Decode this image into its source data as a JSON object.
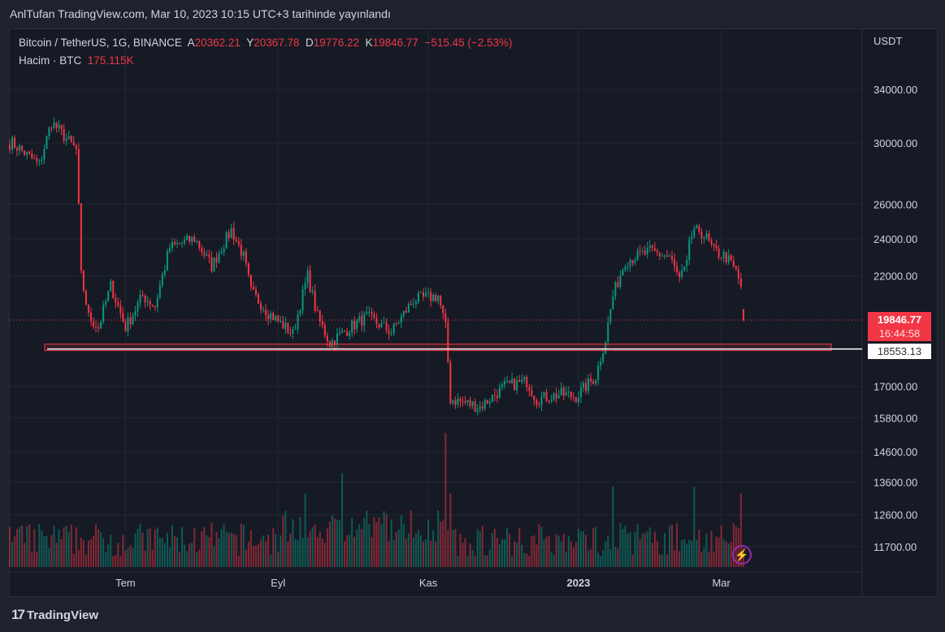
{
  "header": "AnlTufan TradingView.com, Mar 10, 2023 10:15 UTC+3 tarihinde yayınlandı",
  "legend": {
    "symbol": "Bitcoin / TetherUS, 1G, BINANCE",
    "open_label": "A",
    "open": "20362.21",
    "high_label": "Y",
    "high": "20367.78",
    "low_label": "D",
    "low": "19776.22",
    "close_label": "K",
    "close": "19846.77",
    "change": "−515.45 (−2.53%)",
    "volume_label": "Hacim · BTC",
    "volume": "175.115K"
  },
  "price_tags": {
    "last_price": "19846.77",
    "countdown": "16:44:58",
    "line_price": "18553.13"
  },
  "footer": {
    "brand": "TradingView"
  },
  "colors": {
    "up": "#089981",
    "down": "#f23645",
    "bg": "#161a25"
  },
  "chart_data": {
    "type": "candlestick",
    "scale": "log",
    "currency": "USDT",
    "y_ticks": [
      "34000.00",
      "30000.00",
      "26000.00",
      "24000.00",
      "22000.00",
      "17000.00",
      "15800.00",
      "14600.00",
      "13600.00",
      "12600.00",
      "11700.00"
    ],
    "y_tick_values": [
      34000,
      30000,
      26000,
      24000,
      22000,
      17000,
      15800,
      14600,
      13600,
      12600,
      11700
    ],
    "x_ticks": [
      {
        "label": "Tem",
        "day": 47
      },
      {
        "label": "Eyl",
        "day": 109
      },
      {
        "label": "Kas",
        "day": 170
      },
      {
        "label": "2023",
        "day": 231
      },
      {
        "label": "Mar",
        "day": 289
      }
    ],
    "horizontal_line": 18553.13,
    "close_path_day_price": [
      [
        1,
        30000
      ],
      [
        12,
        28500
      ],
      [
        17,
        31500
      ],
      [
        22,
        30500
      ],
      [
        27,
        29500
      ],
      [
        29,
        22000
      ],
      [
        32,
        20000
      ],
      [
        36,
        19500
      ],
      [
        41,
        21500
      ],
      [
        47,
        19500
      ],
      [
        54,
        21000
      ],
      [
        59,
        20500
      ],
      [
        65,
        23500
      ],
      [
        75,
        24000
      ],
      [
        82,
        22500
      ],
      [
        90,
        24500
      ],
      [
        95,
        23000
      ],
      [
        98,
        21200
      ],
      [
        105,
        20200
      ],
      [
        115,
        19200
      ],
      [
        121,
        22000
      ],
      [
        125,
        20000
      ],
      [
        130,
        18800
      ],
      [
        138,
        19500
      ],
      [
        145,
        20000
      ],
      [
        155,
        19300
      ],
      [
        164,
        20800
      ],
      [
        174,
        21000
      ],
      [
        177,
        19500
      ],
      [
        179,
        16500
      ],
      [
        184,
        16400
      ],
      [
        191,
        16200
      ],
      [
        201,
        17000
      ],
      [
        210,
        17200
      ],
      [
        214,
        16500
      ],
      [
        224,
        16700
      ],
      [
        230,
        16600
      ],
      [
        238,
        17400
      ],
      [
        242,
        19000
      ],
      [
        245,
        21000
      ],
      [
        250,
        22800
      ],
      [
        260,
        23300
      ],
      [
        268,
        23000
      ],
      [
        272,
        21800
      ],
      [
        275,
        22500
      ],
      [
        276,
        24000
      ],
      [
        280,
        24500
      ],
      [
        283,
        24000
      ],
      [
        286,
        23300
      ],
      [
        291,
        23000
      ],
      [
        295,
        22200
      ],
      [
        297,
        21500
      ],
      [
        298,
        19850
      ]
    ],
    "volume_spike_days": [
      [
        177,
        1.0
      ],
      [
        179,
        0.55
      ],
      [
        135,
        0.7
      ],
      [
        278,
        0.6
      ],
      [
        297,
        0.55
      ],
      [
        245,
        0.6
      ],
      [
        120,
        0.55
      ]
    ]
  }
}
